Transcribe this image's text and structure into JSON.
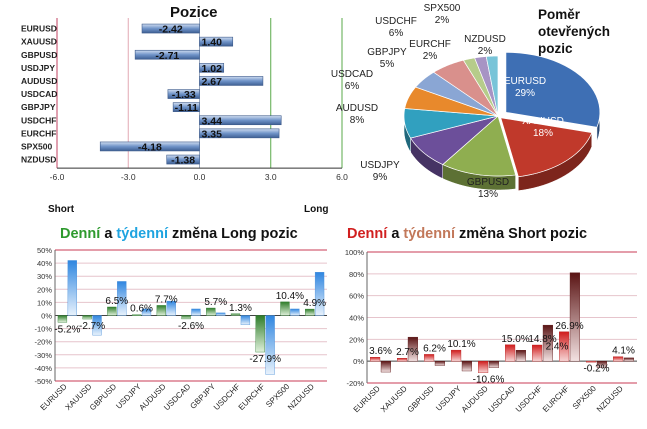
{
  "titles": {
    "positions": "Pozice",
    "ratio": "Poměr\notevřených\npozic",
    "long": {
      "w1": "Denní",
      "w2": "a",
      "w3": "týdenní",
      "w4": "změna Long pozic"
    },
    "short": {
      "w1": "Denní",
      "w2": "a",
      "w3": "týdenní",
      "w4": "změna Short pozic"
    },
    "short_side": "Short",
    "long_side": "Long"
  },
  "colors": {
    "pos_bar": "#6f93c8",
    "green": "#3f9a3a",
    "blue": "#4aa3e8",
    "red": "#c8201f",
    "dark_red": "#6e1a1a",
    "grid_pink": "#e2a8b4",
    "axis_green": "#5aaa4a"
  },
  "chart_data": [
    {
      "type": "bar",
      "orientation": "horizontal",
      "title": "Pozice",
      "categories": [
        "EURUSD",
        "XAUUSD",
        "GBPUSD",
        "USDJPY",
        "AUDUSD",
        "USDCAD",
        "GBPJPY",
        "USDCHF",
        "EURCHF",
        "SPX500",
        "NZDUSD"
      ],
      "values": [
        -2.42,
        1.4,
        -2.71,
        1.02,
        2.67,
        -1.33,
        -1.11,
        3.44,
        3.35,
        -4.18,
        -1.38
      ],
      "labels": [
        "-2.42",
        "1.40",
        "-2.71",
        "1.02",
        "2.67",
        "-1.33",
        "-1.11",
        "3.44",
        "3.35",
        "-4.18",
        "-1.38"
      ],
      "xlim": [
        -6,
        6
      ],
      "xticks": [
        "-6.0",
        "-3.0",
        "0.0",
        "3.0",
        "6.0"
      ],
      "xtick_values": [
        -6,
        -3,
        0,
        3,
        6
      ],
      "reference_lines": [
        -3,
        0,
        3
      ]
    },
    {
      "type": "pie",
      "title": "Poměr otevřených pozic",
      "slices": [
        {
          "name": "EURUSD",
          "value": 29,
          "label": "29%",
          "color": "#3e6fb4"
        },
        {
          "name": "XAUUSD",
          "value": 18,
          "label": "18%",
          "color": "#c0392b"
        },
        {
          "name": "GBPUSD",
          "value": 13,
          "label": "13%",
          "color": "#8fae50"
        },
        {
          "name": "USDJPY",
          "value": 9,
          "label": "9%",
          "color": "#6c4f9a"
        },
        {
          "name": "AUDUSD",
          "value": 8,
          "label": "8%",
          "color": "#31a0bf"
        },
        {
          "name": "USDCAD",
          "value": 6,
          "label": "6%",
          "color": "#e8892c"
        },
        {
          "name": "GBPJPY",
          "value": 5,
          "label": "5%",
          "color": "#8aa6d4"
        },
        {
          "name": "USDCHF",
          "value": 6,
          "label": "6%",
          "color": "#d9908c"
        },
        {
          "name": "EURCHF",
          "value": 2,
          "label": "2%",
          "color": "#b6cc8a"
        },
        {
          "name": "SPX500",
          "value": 2,
          "label": "2%",
          "color": "#a794c4"
        },
        {
          "name": "NZDUSD",
          "value": 2,
          "label": "2%",
          "color": "#78c4d8"
        }
      ]
    },
    {
      "type": "bar",
      "title": "Denní a týdenní změna Long pozic",
      "categories": [
        "EURUSD",
        "XAUUSD",
        "GBPUSD",
        "USDJPY",
        "AUDUSD",
        "USDCAD",
        "GBPJPY",
        "USDCHF",
        "EURCHF",
        "SPX500",
        "NZDUSD"
      ],
      "series": [
        {
          "name": "Denní",
          "values": [
            -5.2,
            -2.7,
            6.5,
            0.6,
            7.7,
            -2.6,
            5.7,
            1.3,
            -27.9,
            10.4,
            4.9
          ]
        },
        {
          "name": "týdenní",
          "values": [
            42,
            -15,
            26,
            5,
            11,
            5,
            2,
            -7,
            -45,
            5,
            33
          ]
        }
      ],
      "data_labels": [
        "-5.2%",
        "-2.7%",
        "6.5%",
        "0.6%",
        "7.7%",
        "-2.6%",
        "5.7%",
        "1.3%",
        "-27.9%",
        "10.4%",
        "4.9%"
      ],
      "ylim": [
        -50,
        50
      ],
      "yticks": [
        "-50%",
        "-40%",
        "-30%",
        "-20%",
        "-10%",
        "0%",
        "10%",
        "20%",
        "30%",
        "40%",
        "50%"
      ],
      "ytick_values": [
        -50,
        -40,
        -30,
        -20,
        -10,
        0,
        10,
        20,
        30,
        40,
        50
      ]
    },
    {
      "type": "bar",
      "title": "Denní a týdenní změna Short pozic",
      "categories": [
        "EURUSD",
        "XAUUSD",
        "GBPUSD",
        "USDJPY",
        "AUDUSD",
        "USDCAD",
        "USDCHF",
        "EURCHF",
        "SPX500",
        "NZDUSD"
      ],
      "series": [
        {
          "name": "Denní",
          "values": [
            3.6,
            2.7,
            6.2,
            10.1,
            -10.6,
            15.0,
            14.8,
            26.9,
            -0.2,
            4.1
          ]
        },
        {
          "name": "týdenní",
          "values": [
            -10,
            22,
            -4,
            -9,
            -6,
            10,
            33,
            81,
            -6,
            3
          ]
        }
      ],
      "data_labels": [
        "3.6%",
        "2.7%",
        "6.2%",
        "10.1%",
        "-10.6%",
        "15.0%",
        "14.8%",
        "26.9%",
        "-0.2%",
        "4.1%"
      ],
      "extra_label": "2.4%",
      "ylim": [
        -20,
        100
      ],
      "yticks": [
        "-20%",
        "0%",
        "20%",
        "40%",
        "60%",
        "80%",
        "100%"
      ],
      "ytick_values": [
        -20,
        0,
        20,
        40,
        60,
        80,
        100
      ]
    }
  ]
}
